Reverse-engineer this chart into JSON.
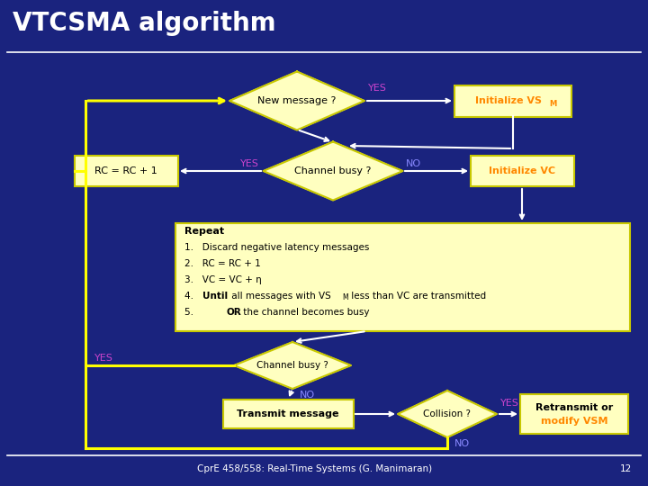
{
  "title": "VTCSMA algorithm",
  "bg_color": "#1a237e",
  "title_color": "white",
  "title_fontsize": 20,
  "diamond_fill": "#ffffc0",
  "diamond_edge": "#c8c800",
  "box_fill": "#ffffc0",
  "box_edge": "#c8c800",
  "yellow_line_color": "#ffff00",
  "yes_color": "#cc44cc",
  "no_color": "#8888ff",
  "orange_color": "#ff8800",
  "footer_text": "CprE 458/558: Real-Time Systems (G. Manimaran)",
  "footer_page": "12",
  "init_vsm_text": "Initialize VS",
  "init_vc_text": "Initialize VC",
  "rc_box_text": "RC = RC + 1",
  "new_msg_text": "New message ?",
  "channel_busy1_text": "Channel busy ?",
  "channel_busy2_text": "Channel busy ?",
  "transmit_text": "Transmit message",
  "collision_text": "Collision ?",
  "retransmit_line1": "Retransmit or",
  "retransmit_line2": "modify VSM"
}
